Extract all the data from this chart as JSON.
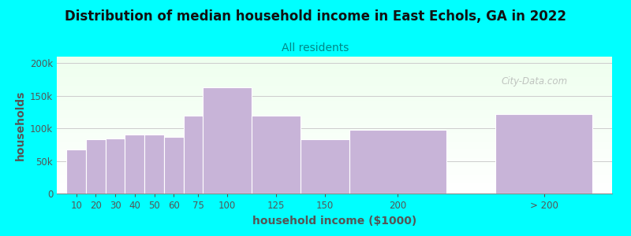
{
  "title": "Distribution of median household income in East Echols, GA in 2022",
  "subtitle": "All residents",
  "xlabel": "household income ($1000)",
  "ylabel": "households",
  "background_color": "#00FFFF",
  "plot_bg_gradient_top": "#eeffee",
  "plot_bg_gradient_bottom": "#ffffff",
  "bar_color": "#c8b4d8",
  "bar_edge_color": "#ffffff",
  "categories": [
    "10",
    "20",
    "30",
    "40",
    "50",
    "60",
    "75",
    "100",
    "125",
    "150",
    "200",
    "> 200"
  ],
  "bar_widths": [
    10,
    10,
    10,
    10,
    10,
    10,
    15,
    25,
    25,
    25,
    50,
    50
  ],
  "bar_lefts": [
    5,
    15,
    25,
    35,
    45,
    55,
    65,
    75,
    100,
    125,
    150,
    225
  ],
  "values": [
    67000,
    83000,
    85000,
    90000,
    90000,
    87000,
    120000,
    163000,
    120000,
    83000,
    98000,
    122000
  ],
  "ylim": [
    0,
    210000
  ],
  "yticks": [
    0,
    50000,
    100000,
    150000,
    200000
  ],
  "ytick_labels": [
    "0",
    "50k",
    "100k",
    "150k",
    "200k"
  ],
  "title_fontsize": 12,
  "subtitle_fontsize": 10,
  "axis_label_fontsize": 10,
  "tick_fontsize": 8.5,
  "watermark_text": "City-Data.com",
  "watermark_color": "#aaaaaa",
  "title_color": "#111111",
  "subtitle_color": "#008888",
  "axis_label_color": "#555555",
  "tick_color": "#555555"
}
